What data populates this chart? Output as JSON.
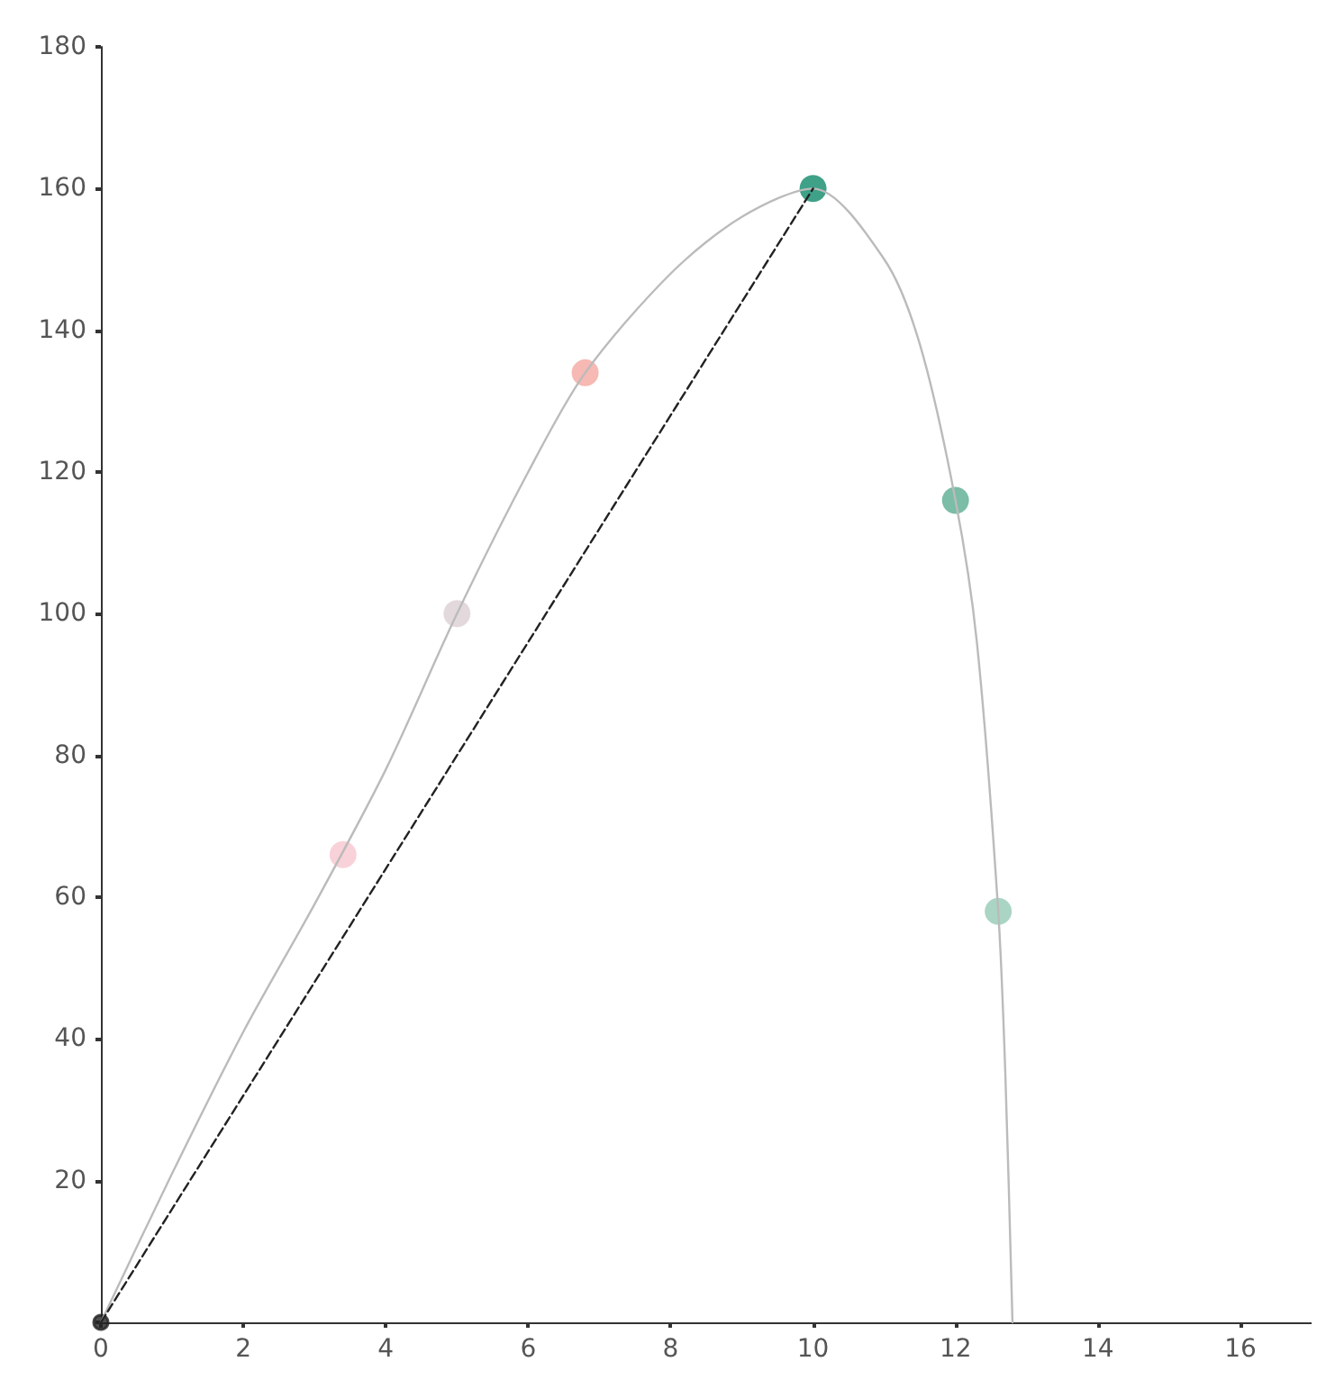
{
  "chart_data": {
    "type": "line",
    "xlim": [
      0,
      17
    ],
    "ylim": [
      0,
      180
    ],
    "xticks": [
      0,
      2,
      4,
      6,
      8,
      10,
      12,
      14,
      16
    ],
    "yticks": [
      {
        "value": 0,
        "label": null
      },
      20,
      40,
      60,
      80,
      100,
      120,
      140,
      160,
      180
    ],
    "grid": false,
    "series": [
      {
        "color": "#bbbbbb",
        "marker": "none",
        "line_style": "solid",
        "x": [
          0,
          1,
          2,
          3,
          4,
          5,
          6,
          6.8,
          8,
          9,
          10,
          11,
          11.5,
          12,
          12.3,
          12.6,
          12.7,
          12.8
        ],
        "values": [
          0,
          21,
          41,
          59,
          78,
          100,
          120,
          134,
          148,
          156,
          160,
          150,
          138,
          116,
          96,
          58,
          35,
          0
        ]
      },
      {
        "color": "#222222",
        "marker": "none",
        "line_style": "dashed",
        "x": [
          0,
          10
        ],
        "values": [
          0,
          160
        ]
      },
      {
        "type": "scatter",
        "marker": "circle",
        "x": [
          3.4,
          5,
          6.8,
          10,
          12,
          12.6
        ],
        "values": [
          66,
          100,
          134,
          160,
          116,
          58
        ],
        "colors": [
          "#f7c6cf",
          "#dcd0d4",
          "#f4a7a0",
          "#0e8a6a",
          "#5aad90",
          "#95cbb6"
        ]
      },
      {
        "type": "scatter",
        "marker": "circle",
        "color": "#222222",
        "x": [
          0
        ],
        "values": [
          0
        ]
      }
    ]
  }
}
